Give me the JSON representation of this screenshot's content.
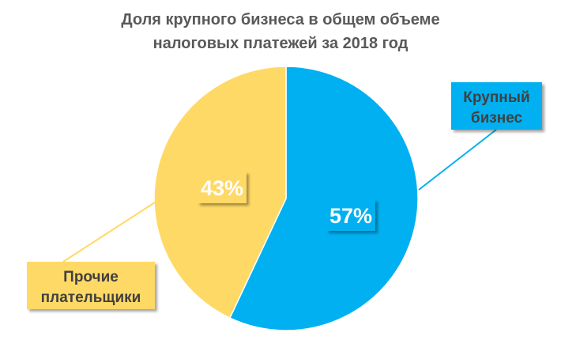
{
  "title_lines": [
    "Доля крупного бизнеса в общем объеме",
    "налоговых платежей за 2018 год"
  ],
  "colors": {
    "large_business": "#00B0F0",
    "other_payers": "#FFD966",
    "title_text": "#595959",
    "label_text": "#404040"
  },
  "chart_data": {
    "type": "pie",
    "title": "Доля крупного бизнеса в общем объеме налоговых платежей за 2018 год",
    "unit": "%",
    "series": [
      {
        "name": "Крупный бизнес",
        "value": 57,
        "value_label": "57%",
        "category_label_lines": [
          "Крупный",
          "бизнес"
        ],
        "color": "#00B0F0"
      },
      {
        "name": "Прочие плательщики",
        "value": 43,
        "value_label": "43%",
        "category_label_lines": [
          "Прочие",
          "плательщики"
        ],
        "color": "#FFD966"
      }
    ],
    "legend": "none"
  }
}
